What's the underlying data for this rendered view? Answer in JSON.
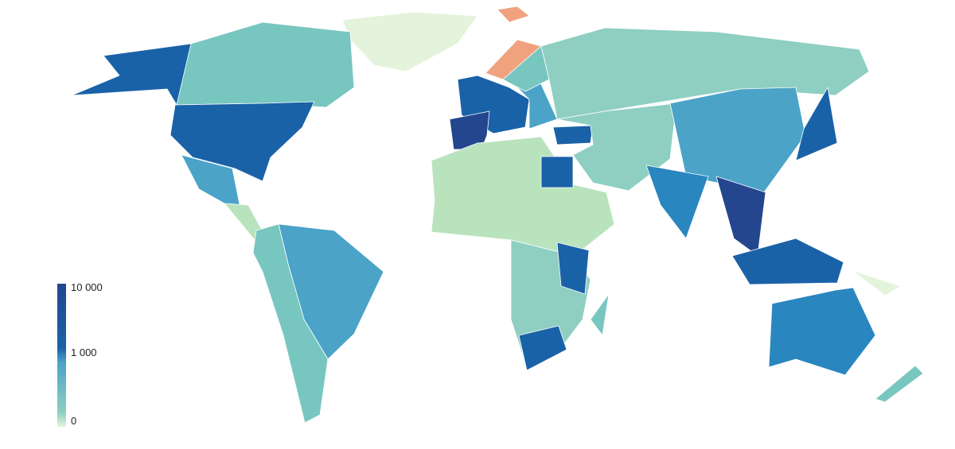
{
  "legend": {
    "labels": [
      "10 000",
      "1 000",
      "0"
    ],
    "scale": "log",
    "colors": [
      "#24468f",
      "#1a62a8",
      "#4ba3c8",
      "#8ecfc2",
      "#e4f4dc"
    ],
    "no_data_color": "#f0a27e"
  }
}
